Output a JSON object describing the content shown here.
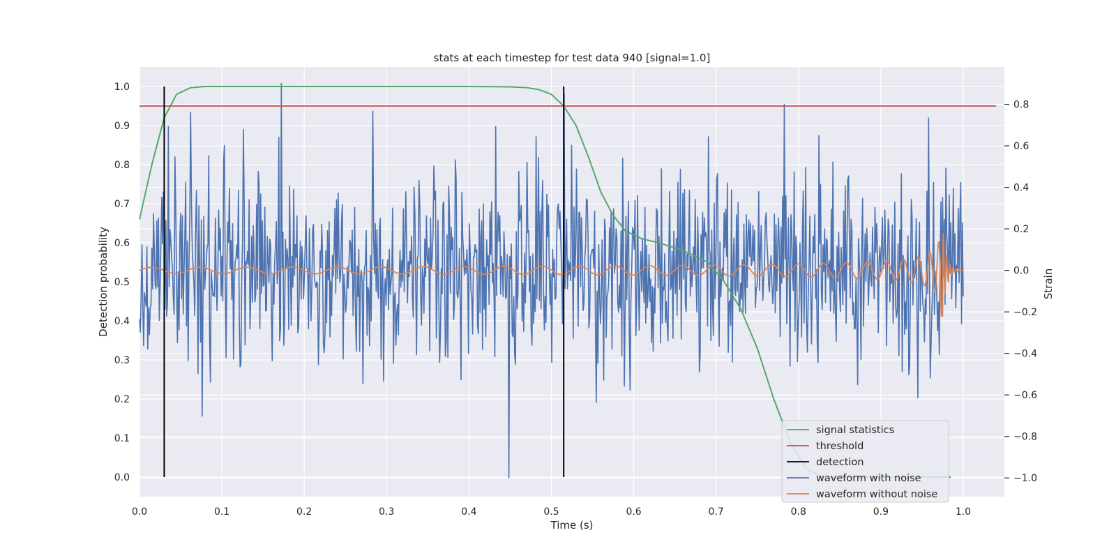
{
  "chart_data": {
    "type": "line",
    "title": "stats at each timestep for test data 940 [signal=1.0]",
    "xlabel": "Time (s)",
    "ylabel": "Detection probability",
    "ylabel_right": "Strain",
    "xlim": [
      0.0,
      1.05
    ],
    "ylim": [
      -0.05,
      1.05
    ],
    "ylim_right": [
      -1.09,
      0.98
    ],
    "xticks": [
      0.0,
      0.1,
      0.2,
      0.3,
      0.4,
      0.5,
      0.6,
      0.7,
      0.8,
      0.9,
      1.0
    ],
    "yticks": [
      0.0,
      0.1,
      0.2,
      0.3,
      0.4,
      0.5,
      0.6,
      0.7,
      0.8,
      0.9,
      1.0
    ],
    "yticks_right": [
      -1.0,
      -0.8,
      -0.6,
      -0.4,
      -0.2,
      0.0,
      0.2,
      0.4,
      0.6,
      0.8
    ],
    "tick_labels_x": [
      "0.0",
      "0.1",
      "0.2",
      "0.3",
      "0.4",
      "0.5",
      "0.6",
      "0.7",
      "0.8",
      "0.9",
      "1.0"
    ],
    "tick_labels_y": [
      "0.0",
      "0.1",
      "0.2",
      "0.3",
      "0.4",
      "0.5",
      "0.6",
      "0.7",
      "0.8",
      "0.9",
      "1.0"
    ],
    "tick_labels_y_right": [
      "−1.0",
      "−0.8",
      "−0.6",
      "−0.4",
      "−0.2",
      "0.0",
      "0.2",
      "0.4",
      "0.6",
      "0.8"
    ],
    "grid": true,
    "legend_position": "bottom-right",
    "colors": {
      "signal_statistics": "#55a868",
      "threshold": "#c44e52",
      "detection": "#000000",
      "waveform_with_noise": "#4c72b0",
      "waveform_without_noise": "#dd8452",
      "plot_background": "#eaeaf2",
      "grid": "#ffffff"
    },
    "series": [
      {
        "name": "signal statistics",
        "axis": "left",
        "x": [
          0.0,
          0.015,
          0.03,
          0.045,
          0.062,
          0.08,
          0.1,
          0.2,
          0.3,
          0.4,
          0.45,
          0.47,
          0.485,
          0.5,
          0.515,
          0.53,
          0.545,
          0.56,
          0.575,
          0.59,
          0.61,
          0.63,
          0.66,
          0.69,
          0.71,
          0.73,
          0.75,
          0.77,
          0.79,
          0.81,
          0.83,
          0.86,
          0.9,
          0.95,
          0.985
        ],
        "y": [
          0.66,
          0.8,
          0.92,
          0.98,
          0.997,
          1.0,
          1.0,
          1.0,
          1.0,
          1.0,
          0.999,
          0.997,
          0.992,
          0.98,
          0.95,
          0.9,
          0.82,
          0.73,
          0.67,
          0.63,
          0.61,
          0.6,
          0.58,
          0.55,
          0.5,
          0.43,
          0.33,
          0.2,
          0.09,
          0.02,
          0.0,
          0.0,
          0.0,
          0.0,
          0.0
        ]
      },
      {
        "name": "threshold",
        "axis": "left",
        "x": [
          0.0,
          1.04
        ],
        "y": [
          0.95,
          0.95
        ]
      },
      {
        "name": "detection",
        "axis": "left",
        "x": [
          0.03,
          0.515
        ],
        "y_range": [
          0.0,
          1.0
        ]
      },
      {
        "name": "waveform with noise",
        "axis": "right",
        "x_range": [
          0.0,
          1.0
        ],
        "n_points": 1000,
        "std": 0.24,
        "min": -1.0,
        "max": 0.9,
        "note_points": [
          [
            0.172,
            0.9
          ],
          [
            0.448,
            -1.0
          ],
          [
            0.516,
            0.85
          ],
          [
            0.783,
            0.8
          ]
        ]
      },
      {
        "name": "waveform without noise",
        "axis": "right",
        "x_range": [
          0.0,
          1.0
        ],
        "description_amplitude_start": 0.015,
        "description_amplitude_peak": 0.22,
        "merger_time": 0.975
      }
    ]
  }
}
